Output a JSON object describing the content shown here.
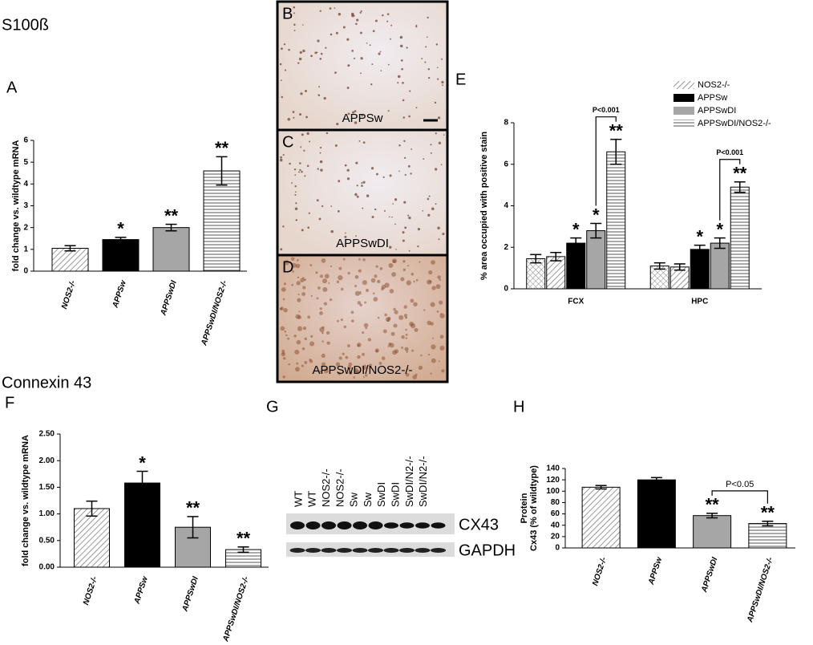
{
  "headings": [
    "S100ß",
    "Connexin 43"
  ],
  "chart_data": [
    {
      "type": "bar",
      "panel": "A",
      "y_label": "fold change vs. wildtype mRNA",
      "categories": [
        "NOS2-/-",
        "APPSw",
        "APPSwDI",
        "APPSwDI/NOS2-/-"
      ],
      "values": [
        1.05,
        1.45,
        2.0,
        4.6
      ],
      "errors": [
        0.12,
        0.1,
        0.15,
        0.65
      ],
      "significance": [
        null,
        "*",
        "**",
        "**"
      ],
      "fills": [
        "hatch",
        "#000000",
        "#a6a6a6",
        "hlines"
      ],
      "ylim": [
        0,
        6
      ],
      "yticks": [
        0,
        1,
        2,
        3,
        4,
        5,
        6
      ]
    },
    {
      "type": "bar",
      "panel": "E",
      "y_label": "% area occupied with positive stain",
      "categories": [
        "FCX",
        "HPC"
      ],
      "series": [
        {
          "name": null,
          "fill": "crosshatch",
          "values": [
            1.45,
            1.1
          ],
          "errors": [
            0.2,
            0.15
          ],
          "significance": [
            null,
            null
          ]
        },
        {
          "name": "NOS2-/-",
          "fill": "hatch",
          "values": [
            1.55,
            1.05
          ],
          "errors": [
            0.2,
            0.15
          ],
          "significance": [
            null,
            null
          ]
        },
        {
          "name": "APPSw",
          "fill": "#000000",
          "values": [
            2.2,
            1.9
          ],
          "errors": [
            0.25,
            0.2
          ],
          "significance": [
            "*",
            "*"
          ]
        },
        {
          "name": "APPSwDI",
          "fill": "#a6a6a6",
          "values": [
            2.8,
            2.2
          ],
          "errors": [
            0.35,
            0.25
          ],
          "significance": [
            "*",
            "*"
          ]
        },
        {
          "name": "APPSwDI/NOS2-/-",
          "fill": "hlines",
          "values": [
            6.6,
            4.9
          ],
          "errors": [
            0.6,
            0.25
          ],
          "significance": [
            "**",
            "**"
          ]
        }
      ],
      "comparison_labels": [
        "P<0.001",
        "P<0.001"
      ],
      "ylim": [
        0,
        8
      ],
      "yticks": [
        0,
        2,
        4,
        6,
        8
      ]
    },
    {
      "type": "bar",
      "panel": "F",
      "y_label": "fold change vs. wildtype mRNA",
      "categories": [
        "NOS2-/-",
        "APPSw",
        "APPSwDI",
        "APPSwDI/NOS2-/-"
      ],
      "values": [
        1.1,
        1.58,
        0.75,
        0.33
      ],
      "errors": [
        0.14,
        0.22,
        0.2,
        0.05
      ],
      "significance": [
        null,
        "*",
        "**",
        "**"
      ],
      "fills": [
        "hatch",
        "#000000",
        "#a6a6a6",
        "hlines"
      ],
      "ylim": [
        0,
        2.5
      ],
      "yticks": [
        {
          "value": 0,
          "label": "0.00"
        },
        {
          "value": 0.5,
          "label": "0.50"
        },
        {
          "value": 1,
          "label": "1.00"
        },
        {
          "value": 1.5,
          "label": "1.50"
        },
        {
          "value": 2,
          "label": "2.00"
        },
        {
          "value": 2.5,
          "label": "2.50"
        }
      ]
    },
    {
      "type": "bar",
      "panel": "H",
      "y_label": [
        "Protein",
        "Cx43 (% of wildtype)"
      ],
      "categories": [
        "NOS2-/-",
        "APPSw",
        "APPSwDI",
        "APPSwDI/NOS2-/-"
      ],
      "values": [
        107,
        120,
        57,
        43
      ],
      "errors": [
        3,
        4,
        4,
        4
      ],
      "significance": [
        null,
        null,
        "**",
        "**"
      ],
      "fills": [
        "hatch",
        "#000000",
        "#a6a6a6",
        "hlines"
      ],
      "comparison_label": "P<0.05",
      "ylim": [
        0,
        140
      ],
      "yticks": [
        0,
        20,
        40,
        60,
        80,
        100,
        120,
        140
      ]
    }
  ],
  "micrographs": [
    {
      "panel": "B",
      "label": "APPSw"
    },
    {
      "panel": "C",
      "label": "APPSwDI"
    },
    {
      "panel": "D",
      "label": "APPSwDI/NOS2-/-"
    }
  ],
  "blot": {
    "panel": "G",
    "lanes": [
      "WT",
      "WT",
      "NOS2-/-",
      "NOS2-/-",
      "Sw",
      "Sw",
      "SwDI",
      "SwDI",
      "SwDI/N2-/-",
      "SwDI/N2-/-"
    ],
    "bands": [
      "CX43",
      "GAPDH"
    ]
  }
}
